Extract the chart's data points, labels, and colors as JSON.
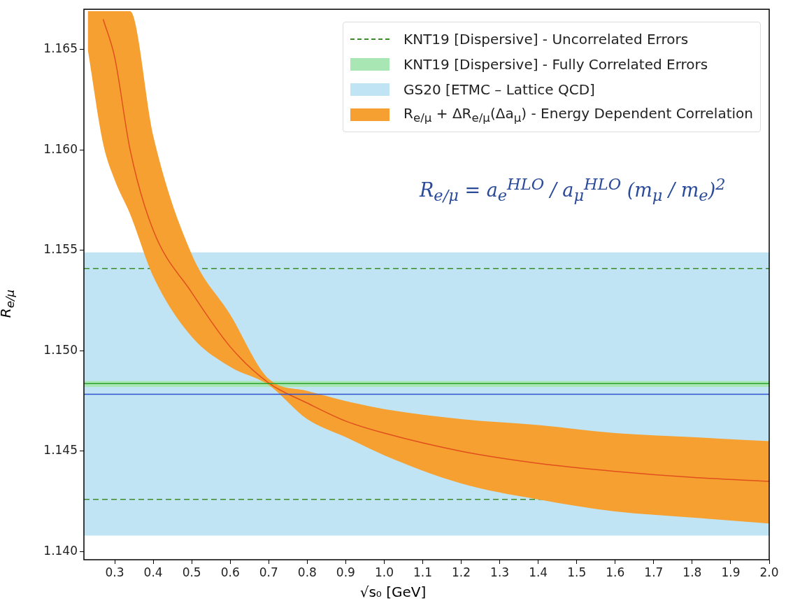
{
  "chart_data": {
    "type": "line",
    "xlabel": "√s₀ [GeV]",
    "ylabel": "R$_{e/μ}$",
    "xlim": [
      0.22,
      2.0
    ],
    "ylim": [
      1.1396,
      1.167
    ],
    "xticks": [
      0.3,
      0.4,
      0.5,
      0.6,
      0.7,
      0.8,
      0.9,
      {
        "value": 1.0,
        "label": "1.0"
      },
      1.1,
      1.2,
      1.3,
      1.4,
      1.5,
      1.6,
      1.7,
      1.8,
      1.9,
      {
        "value": 2.0,
        "label": "2.0"
      }
    ],
    "yticks": [
      {
        "value": 1.14,
        "label": "1.140"
      },
      {
        "value": 1.145,
        "label": "1.145"
      },
      {
        "value": 1.15,
        "label": "1.150"
      },
      {
        "value": 1.155,
        "label": "1.155"
      },
      {
        "value": 1.16,
        "label": "1.160"
      },
      {
        "value": 1.165,
        "label": "1.165"
      }
    ],
    "grid": false,
    "legend": "top right",
    "marker": "none",
    "series": [
      {
        "type": "line",
        "name": "R$_{e/μ}$ + ΔR$_{e/μ}$(Δa$_{μ}$) - Energy Dependent Correlation",
        "color": "#f5a030",
        "x": [
          0.23,
          0.27,
          0.3,
          0.34,
          0.4,
          0.5,
          0.6,
          0.7,
          0.8,
          0.9,
          1.0,
          1.2,
          1.4,
          1.6,
          1.8,
          2.0
        ],
        "values": [
          null,
          null,
          null,
          null,
          null,
          null,
          null,
          null,
          null,
          null,
          null,
          null,
          null,
          null,
          null,
          null
        ],
        "upper": [
          1.1669,
          1.1669,
          1.1669,
          1.1669,
          1.1607,
          1.1548,
          1.1518,
          1.1486,
          1.148,
          1.1475,
          1.1471,
          1.1466,
          1.1463,
          1.1459,
          1.1457,
          1.1455
        ],
        "lower": [
          1.165,
          1.1603,
          1.1585,
          1.1568,
          1.1537,
          1.1507,
          1.1492,
          1.1483,
          1.1466,
          1.1457,
          1.1448,
          1.1434,
          1.1426,
          1.142,
          1.1417,
          1.1414
        ]
      },
      {
        "color": "#e0501e",
        "line_style": "solid",
        "x": [
          0.27,
          0.3,
          0.34,
          0.4,
          0.5,
          0.6,
          0.7,
          0.8,
          0.9,
          1.0,
          1.2,
          1.4,
          1.6,
          1.8,
          2.0
        ],
        "values": [
          1.1665,
          1.1646,
          1.16,
          1.156,
          1.1529,
          1.1502,
          1.1484,
          1.1474,
          1.1465,
          1.1459,
          1.145,
          1.1444,
          1.144,
          1.1437,
          1.1435
        ]
      }
    ],
    "ref_lines": [
      {
        "axis": "y",
        "value": 1.1541,
        "label": "KNT19 [Dispersive] - Uncorrelated Errors",
        "color": "#3c8c28",
        "line_style": "dashed"
      },
      {
        "axis": "y",
        "value": 1.1426,
        "color": "#3c8c28",
        "line_style": "dashed"
      },
      {
        "axis": "y",
        "value": 1.14837,
        "color": "#2ca02c",
        "line_style": "solid"
      },
      {
        "axis": "y",
        "value": 1.14784,
        "color": "#3050d0",
        "line_style": "solid"
      }
    ],
    "bands": [
      {
        "axis": "y",
        "from": 1.1482,
        "to": 1.1485,
        "label": "KNT19 [Dispersive] - Fully Correlated Errors",
        "color": "#a8e6b4"
      },
      {
        "axis": "y",
        "from": 1.1408,
        "to": 1.1549,
        "label": "GS20 [ETMC – Lattice QCD]",
        "color": "#c0e4f4"
      }
    ],
    "annotations": [
      "R$_{e/μ}$ = a$_{e}$$^{HLO}$ / a$_{μ}$$^{HLO}$ (m$_{μ}$ / m$_{e}$)$^{2}$"
    ]
  }
}
